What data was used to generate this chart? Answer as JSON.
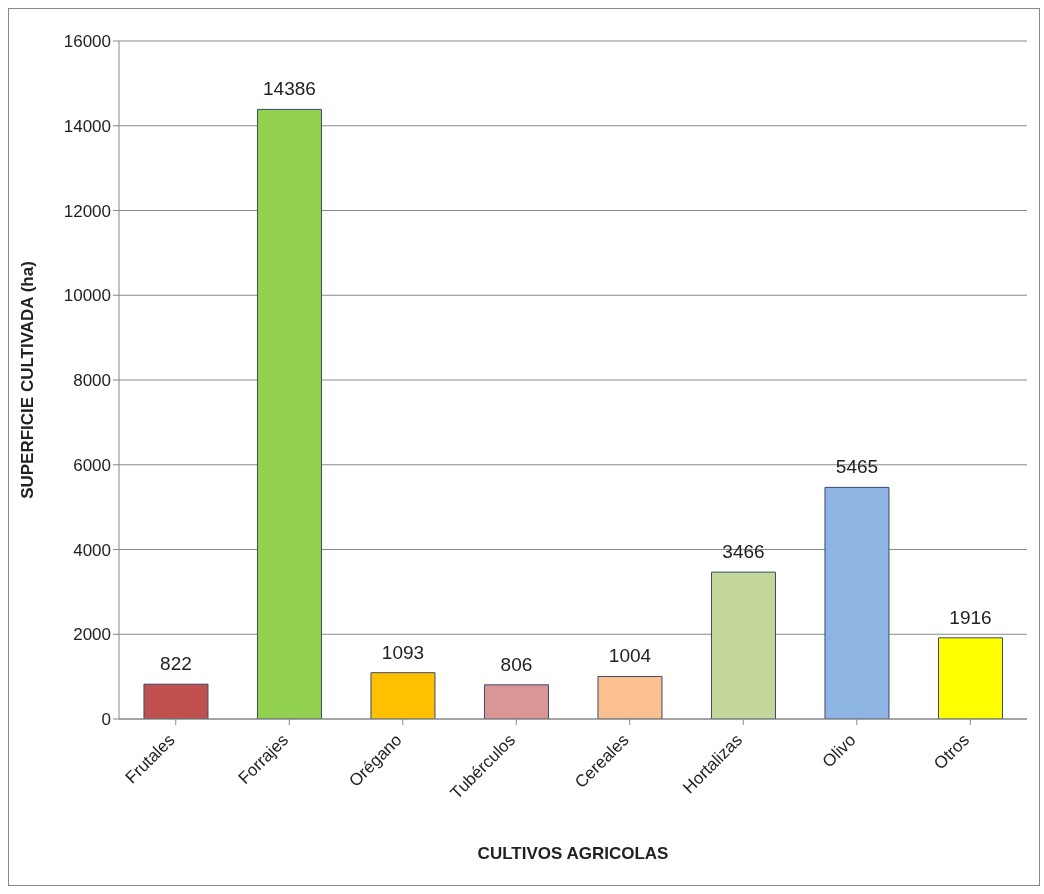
{
  "chart_data": {
    "type": "bar",
    "xlabel": "CULTIVOS AGRICOLAS",
    "ylabel": "SUPERFICIE CULTIVADA (ha)",
    "categories": [
      "Frutales",
      "Forrajes",
      "Orégano",
      "Tubérculos",
      "Cereales",
      "Hortalizas",
      "Olivo",
      "Otros"
    ],
    "values": [
      822,
      14386,
      1093,
      806,
      1004,
      3466,
      5465,
      1916
    ],
    "colors": [
      "#c0504d",
      "#92d050",
      "#ffc000",
      "#da9694",
      "#fac090",
      "#c4d79b",
      "#8db4e2",
      "#ffff00"
    ],
    "ylim": [
      0,
      16000
    ],
    "yticks": [
      0,
      2000,
      4000,
      6000,
      8000,
      10000,
      12000,
      14000,
      16000
    ],
    "grid": "y",
    "data_labels": true
  }
}
